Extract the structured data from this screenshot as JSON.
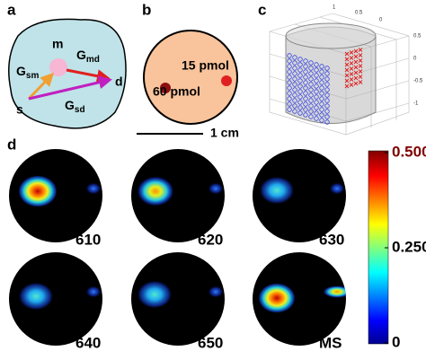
{
  "panels": {
    "a": "a",
    "b": "b",
    "c": "c",
    "d": "d"
  },
  "diagram_a": {
    "m": "m",
    "s": "s",
    "d": "d",
    "g_md": {
      "main": "G",
      "sub": "md"
    },
    "g_sm": {
      "main": "G",
      "sub": "sm"
    },
    "g_sd": {
      "main": "G",
      "sub": "sd"
    }
  },
  "diagram_b": {
    "spot_1": "15 pmol",
    "spot_2": "60 pmol",
    "scale": "1 cm"
  },
  "diagram_c": {
    "top_ticks": [
      "1",
      "0.5",
      "0"
    ],
    "side_ticks": [
      "0.5",
      "0",
      "-0.5",
      "-1"
    ]
  },
  "images": [
    "610",
    "620",
    "630",
    "640",
    "650",
    "MS"
  ],
  "colorbar": {
    "lim": [
      0,
      0.5
    ],
    "ticks": [
      {
        "value": 0.5,
        "label": "0.500"
      },
      {
        "value": 0.25,
        "label": "0.250"
      },
      0
    ]
  }
}
